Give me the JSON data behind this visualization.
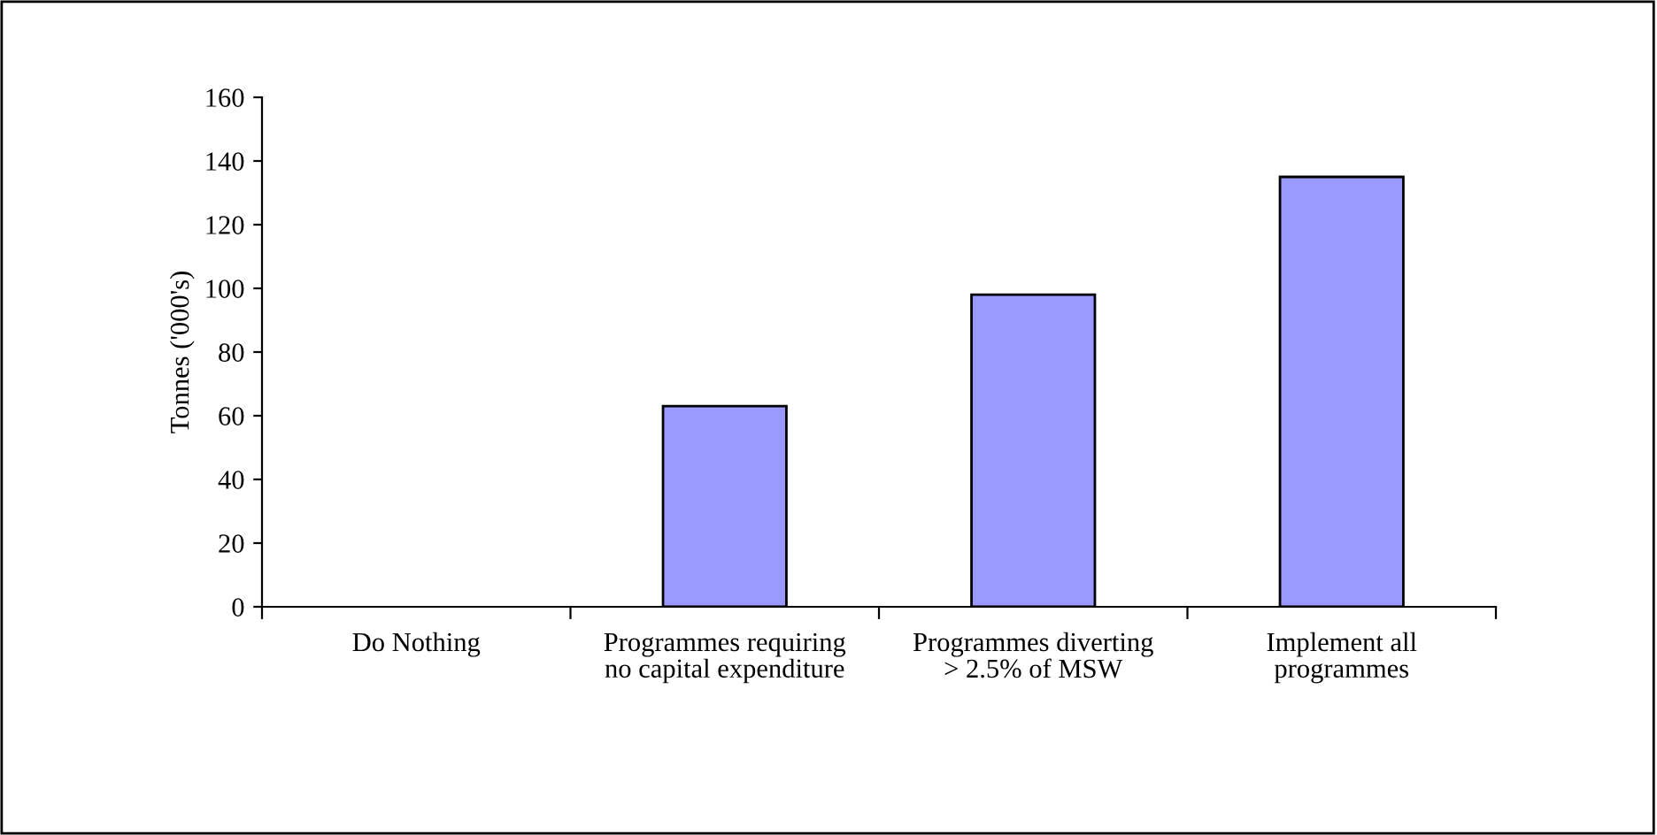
{
  "chart_data": {
    "type": "bar",
    "ylabel": "Tonnes ('000's)",
    "categories": [
      "Do Nothing",
      "Programmes requiring no capital expenditure",
      "Programmes diverting > 2.5% of MSW",
      "Implement all programmes"
    ],
    "values": [
      0,
      63,
      98,
      135
    ],
    "color": "#9999ff",
    "ylim": [
      0,
      160
    ],
    "yticks": [
      0,
      20,
      40,
      60,
      80,
      100,
      120,
      140,
      160
    ],
    "grid": false,
    "legend": false
  }
}
